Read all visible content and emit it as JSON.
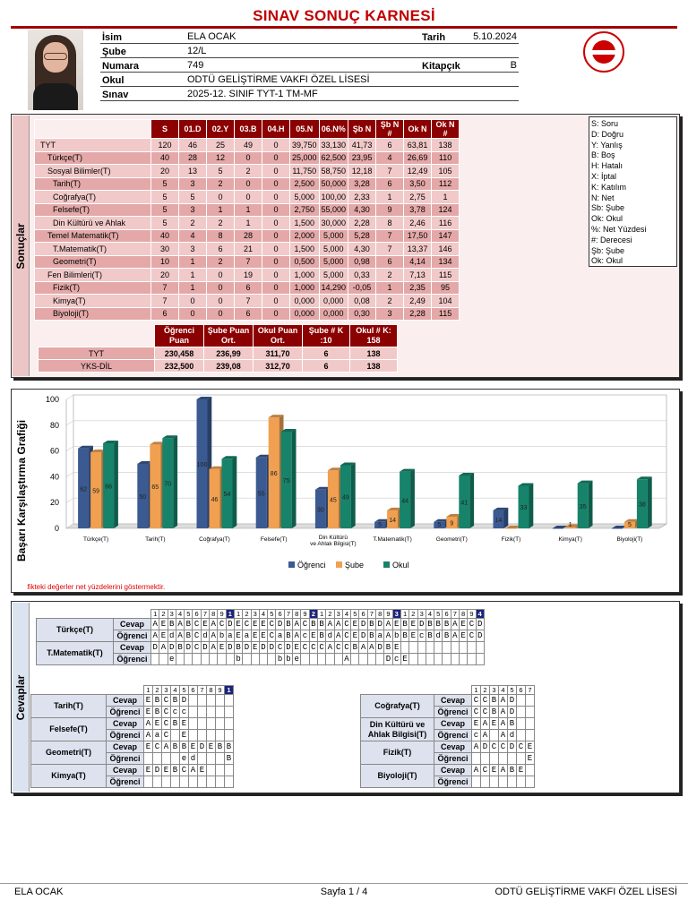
{
  "title": "SINAV SONUÇ KARNESİ",
  "student": {
    "isim_lab": "İsim",
    "isim": "ELA OCAK",
    "sube_lab": "Şube",
    "sube": "12/L",
    "numara_lab": "Numara",
    "numara": "749",
    "okul_lab": "Okul",
    "okul": "ODTÜ GELİŞTİRME VAKFI ÖZEL LİSESİ",
    "sinav_lab": "Sınav",
    "sinav": "2025-12. SINIF TYT-1 TM-MF",
    "tarih_lab": "Tarih",
    "tarih": "5.10.2024",
    "kitapcik_lab": "Kitapçık",
    "kitapcik": "B"
  },
  "results": {
    "sidebar": "Sonuçlar",
    "headers": [
      "S",
      "01.D",
      "02.Y",
      "03.B",
      "04.H",
      "05.N",
      "06.N%",
      "Şb N",
      "Şb N #",
      "Ok N",
      "Ok N #"
    ],
    "rows": [
      {
        "name": "TYT",
        "v": [
          "120",
          "46",
          "25",
          "49",
          "0",
          "39,750",
          "33,130",
          "41,73",
          "6",
          "63,81",
          "138"
        ]
      },
      {
        "name": "Türkçe(T)",
        "v": [
          "40",
          "28",
          "12",
          "0",
          "0",
          "25,000",
          "62,500",
          "23,95",
          "4",
          "26,69",
          "110"
        ]
      },
      {
        "name": "Sosyal Bilimler(T)",
        "v": [
          "20",
          "13",
          "5",
          "2",
          "0",
          "11,750",
          "58,750",
          "12,18",
          "7",
          "12,49",
          "105"
        ]
      },
      {
        "name": "Tarih(T)",
        "v": [
          "5",
          "3",
          "2",
          "0",
          "0",
          "2,500",
          "50,000",
          "3,28",
          "6",
          "3,50",
          "112"
        ]
      },
      {
        "name": "Coğrafya(T)",
        "v": [
          "5",
          "5",
          "0",
          "0",
          "0",
          "5,000",
          "100,00",
          "2,33",
          "1",
          "2,75",
          "1"
        ]
      },
      {
        "name": "Felsefe(T)",
        "v": [
          "5",
          "3",
          "1",
          "1",
          "0",
          "2,750",
          "55,000",
          "4,30",
          "9",
          "3,78",
          "124"
        ]
      },
      {
        "name": "Din Kültürü ve Ahlak",
        "v": [
          "5",
          "2",
          "2",
          "1",
          "0",
          "1,500",
          "30,000",
          "2,28",
          "8",
          "2,46",
          "116"
        ]
      },
      {
        "name": "Temel Matematik(T)",
        "v": [
          "40",
          "4",
          "8",
          "28",
          "0",
          "2,000",
          "5,000",
          "5,28",
          "7",
          "17,50",
          "147"
        ]
      },
      {
        "name": "T.Matematik(T)",
        "v": [
          "30",
          "3",
          "6",
          "21",
          "0",
          "1,500",
          "5,000",
          "4,30",
          "7",
          "13,37",
          "146"
        ]
      },
      {
        "name": "Geometri(T)",
        "v": [
          "10",
          "1",
          "2",
          "7",
          "0",
          "0,500",
          "5,000",
          "0,98",
          "6",
          "4,14",
          "134"
        ]
      },
      {
        "name": "Fen Bilimleri(T)",
        "v": [
          "20",
          "1",
          "0",
          "19",
          "0",
          "1,000",
          "5,000",
          "0,33",
          "2",
          "7,13",
          "115"
        ]
      },
      {
        "name": "Fizik(T)",
        "v": [
          "7",
          "1",
          "0",
          "6",
          "0",
          "1,000",
          "14,290",
          "-0,05",
          "1",
          "2,35",
          "95"
        ]
      },
      {
        "name": "Kimya(T)",
        "v": [
          "7",
          "0",
          "0",
          "7",
          "0",
          "0,000",
          "0,000",
          "0,08",
          "2",
          "2,49",
          "104"
        ]
      },
      {
        "name": "Biyoloji(T)",
        "v": [
          "6",
          "0",
          "0",
          "6",
          "0",
          "0,000",
          "0,000",
          "0,30",
          "3",
          "2,28",
          "115"
        ]
      }
    ],
    "legend": [
      "S: Soru",
      "D: Doğru",
      "Y: Yanlış",
      "B: Boş",
      "H: Hatalı",
      "X: İptal",
      "K: Katılım",
      "N: Net",
      "Sb: Şube",
      "Ok: Okul",
      "%: Net Yüzdesi",
      "#: Derecesi",
      "Şb: Şube",
      "Ok: Okul"
    ]
  },
  "scores": {
    "headers": [
      "Öğrenci Puan",
      "Şube Puan Ort.",
      "Okul Puan Ort.",
      "Şube # K :10",
      "Okul # K: 158"
    ],
    "rows": [
      {
        "name": "TYT",
        "v": [
          "230,458",
          "236,99",
          "311,70",
          "6",
          "138"
        ]
      },
      {
        "name": "YKS-DİL",
        "v": [
          "232,500",
          "239,08",
          "312,70",
          "6",
          "138"
        ]
      }
    ]
  },
  "chart_sidebar": "Başarı Karşılaştırma Grafiği",
  "chart_data": {
    "type": "bar",
    "categories": [
      "Türkçe(T)",
      "Tarih(T)",
      "Coğrafya(T)",
      "Felsefe(T)",
      "Din Kültürü ve Ahlak Bilgisi(T)",
      "T.Matematik(T)",
      "Geometri(T)",
      "Fizik(T)",
      "Kimya(T)",
      "Biyoloji(T)"
    ],
    "series": [
      {
        "name": "Öğrenci",
        "color": "#3b5a91",
        "values": [
          62,
          50,
          100,
          55,
          30,
          5,
          5,
          14,
          0,
          0
        ]
      },
      {
        "name": "Şube",
        "color": "#f0a050",
        "values": [
          59,
          65,
          46,
          86,
          45,
          14,
          9,
          0,
          1,
          5
        ]
      },
      {
        "name": "Okul",
        "color": "#16836a",
        "values": [
          66,
          70,
          54,
          75,
          49,
          44,
          41,
          33,
          35,
          38
        ]
      }
    ],
    "ylim": [
      0,
      100
    ],
    "yticks": [
      "0",
      "20",
      "40",
      "60",
      "80",
      "100"
    ],
    "legend_position": "bottom",
    "note": "*Grafikteki değerler net yüzdelerini göstermektir."
  },
  "answers": {
    "sidebar": "Cevaplar",
    "cevap_lab": "Cevap",
    "ogrenci_lab": "Öğrenci",
    "top": {
      "nums": [
        "1",
        "2",
        "3",
        "4",
        "5",
        "6",
        "7",
        "8",
        "9",
        "1",
        "1",
        "2",
        "3",
        "4",
        "5",
        "6",
        "7",
        "8",
        "9",
        "2",
        "1",
        "2",
        "3",
        "4",
        "5",
        "6",
        "7",
        "8",
        "9",
        "3",
        "1",
        "2",
        "3",
        "4",
        "5",
        "6",
        "7",
        "8",
        "9",
        "4"
      ],
      "rows": [
        {
          "name": "Türkçe(T)",
          "cevap": "AEBABCEACDECEECDBACBBAACEDBDAEBEDBBBAECD",
          "ogrenci": "AEdABCdAbaEaEECaBAcEBdACEDBaAbBEcBdBAECD"
        },
        {
          "name": "T.Matematik(T)",
          "cevap": "DADBDCDAEDBDEDDCDECCCACCBAADBE",
          "ogrenci": "  e       b    bbe     A    DcE"
        }
      ]
    },
    "left": {
      "nums": [
        "1",
        "2",
        "3",
        "4",
        "5",
        "6",
        "7",
        "8",
        "9",
        "1"
      ],
      "rows": [
        {
          "name": "Tarih(T)",
          "cevap": "EBCBD",
          "ogrenci": "EBCcc"
        },
        {
          "name": "Felsefe(T)",
          "cevap": "AECBE",
          "ogrenci": "AaC E"
        },
        {
          "name": "Geometri(T)",
          "cevap": "ECABBEDEBB",
          "ogrenci": "    ed   B"
        },
        {
          "name": "Kimya(T)",
          "cevap": "EDEBCAE",
          "ogrenci": ""
        }
      ]
    },
    "right": {
      "nums": [
        "1",
        "2",
        "3",
        "4",
        "5",
        "6",
        "7"
      ],
      "rows": [
        {
          "name": "Coğrafya(T)",
          "cevap": "CCBAD",
          "ogrenci": "CCBAD"
        },
        {
          "name": "Din Kültürü ve Ahlak Bilgisi(T)",
          "cevap": "EAEAB",
          "ogrenci": "cA Ad"
        },
        {
          "name": "Fizik(T)",
          "cevap": "ADCCDCE",
          "ogrenci": "      E"
        },
        {
          "name": "Biyoloji(T)",
          "cevap": "ACEABE",
          "ogrenci": ""
        }
      ]
    }
  },
  "footer": {
    "left": "ELA OCAK",
    "center": "Sayfa 1 / 4",
    "right": "ODTÜ GELİŞTİRME VAKFI ÖZEL LİSESİ"
  }
}
